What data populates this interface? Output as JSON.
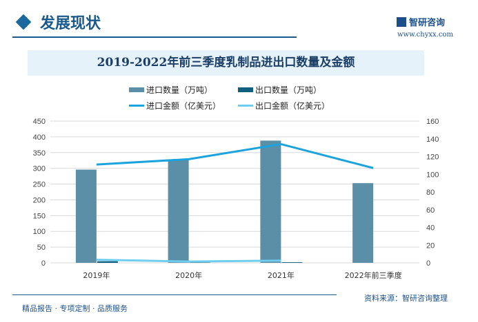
{
  "header": {
    "title": "发展现状",
    "logo_text": "智研咨询",
    "website": "www.chyxx.com"
  },
  "footer": {
    "left": "精品报告 · 专项定制 · 品质服务",
    "source": "资料来源：智研咨询整理"
  },
  "chart_data": {
    "type": "bar+line",
    "title": "2019-2022年前三季度乳制品进出口数量及金额",
    "categories": [
      "2019年",
      "2020年",
      "2021年",
      "2022年前三季度"
    ],
    "left_axis": {
      "range": [
        0,
        450
      ],
      "ticks": [
        "0",
        "50",
        "100",
        "150",
        "200",
        "250",
        "300",
        "350",
        "400",
        "450"
      ]
    },
    "right_axis": {
      "range": [
        0,
        160
      ],
      "ticks": [
        "0",
        "20",
        "40",
        "60",
        "80",
        "100",
        "120",
        "140",
        "160"
      ]
    },
    "grid": true,
    "legend_position": "top",
    "series": [
      {
        "name": "进口数量（万吨）",
        "kind": "bar",
        "axis": "left",
        "color": "#5b8fa8",
        "values": [
          296,
          326,
          388,
          253
        ]
      },
      {
        "name": "出口数量（万吨）",
        "kind": "bar",
        "axis": "left",
        "color": "#0f5f80",
        "values": [
          5,
          1,
          2,
          null
        ]
      },
      {
        "name": "进口金额（亿美元）",
        "kind": "line",
        "axis": "right",
        "color": "#1aa3dc",
        "values": [
          111,
          117,
          134,
          107
        ]
      },
      {
        "name": "出口金额（亿美元）",
        "kind": "line",
        "axis": "right",
        "color": "#6fcdf0",
        "values": [
          3.5,
          1.5,
          2.5,
          null
        ]
      }
    ]
  }
}
